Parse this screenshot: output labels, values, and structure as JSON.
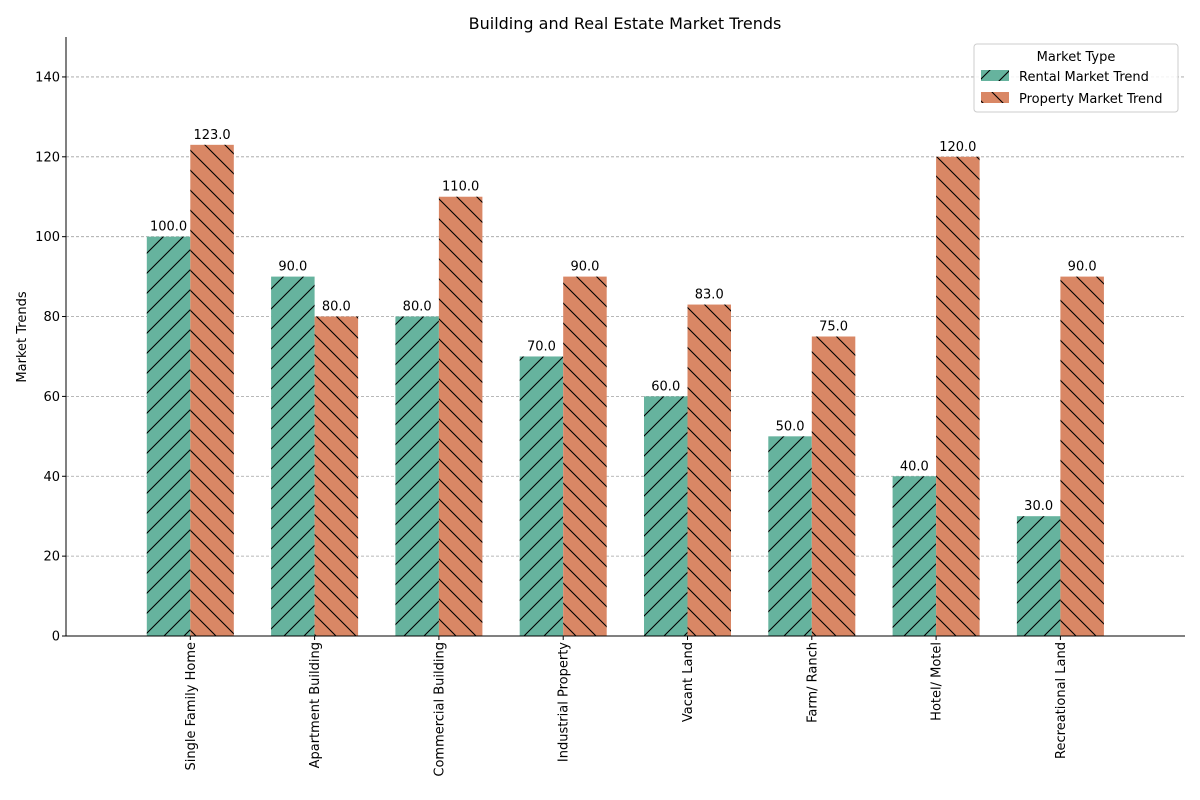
{
  "chart_data": {
    "type": "bar",
    "title": "Building and Real Estate Market Trends",
    "xlabel": "",
    "ylabel": "Market Trends",
    "ylim": [
      0,
      150
    ],
    "yticks": [
      0,
      20,
      40,
      60,
      80,
      100,
      120,
      140
    ],
    "grid": "y-dashed",
    "legend": {
      "title": "Market Type",
      "placement": "top-right"
    },
    "categories": [
      "Single Family Home",
      "Apartment Building",
      "Commercial Building",
      "Industrial Property",
      "Vacant Land",
      "Farm/ Ranch",
      "Hotel/ Motel",
      "Recreational Land"
    ],
    "series": [
      {
        "name": "Rental Market Trend",
        "color": "#66b39e",
        "hatch": "forward",
        "values": [
          100,
          90,
          80,
          70,
          60,
          50,
          40,
          30
        ],
        "labels": [
          "100.0",
          "90.0",
          "80.0",
          "70.0",
          "60.0",
          "50.0",
          "40.0",
          "30.0"
        ]
      },
      {
        "name": "Property Market Trend",
        "color": "#d98765",
        "hatch": "backward",
        "values": [
          123,
          80,
          110,
          90,
          83,
          75,
          120,
          90
        ],
        "labels": [
          "123.0",
          "80.0",
          "110.0",
          "90.0",
          "83.0",
          "75.0",
          "120.0",
          "90.0"
        ]
      }
    ]
  }
}
